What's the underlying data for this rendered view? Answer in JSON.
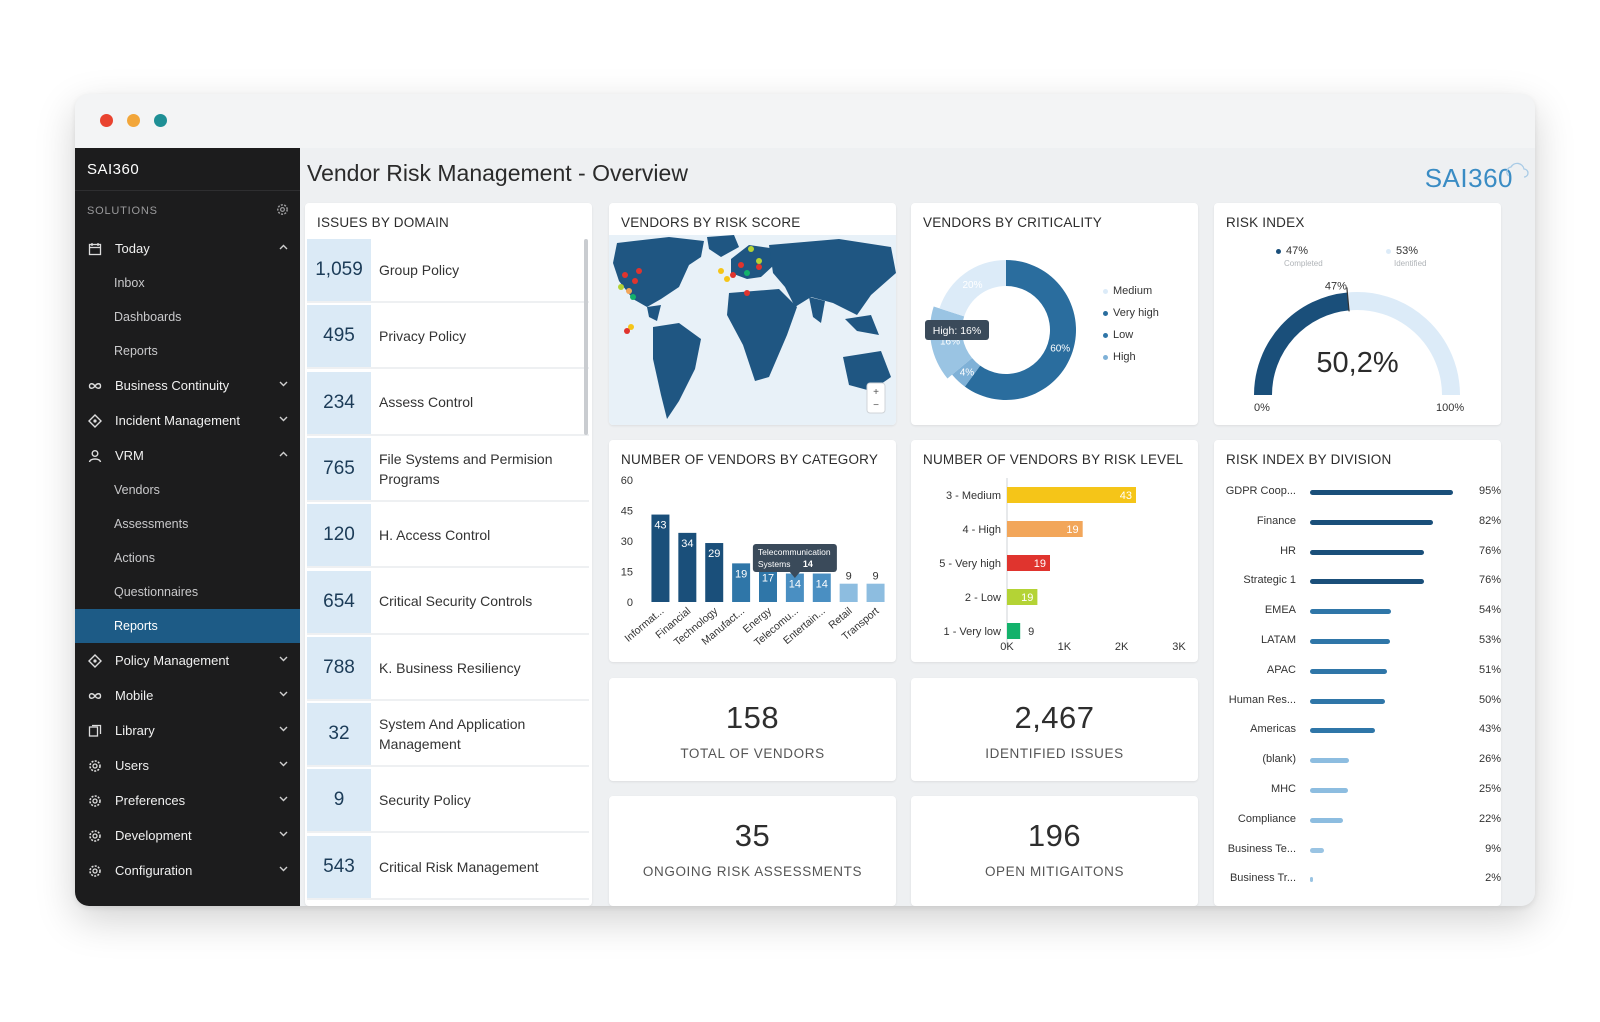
{
  "sidebar": {
    "brand": "SAI360",
    "solutions_label": "SOLUTIONS",
    "items": [
      {
        "type": "item",
        "label": "Today",
        "icon": "calendar-icon",
        "chev": "up"
      },
      {
        "type": "sub",
        "label": "Inbox"
      },
      {
        "type": "sub",
        "label": "Dashboards"
      },
      {
        "type": "sub",
        "label": "Reports"
      },
      {
        "type": "item",
        "label": "Business Continuity",
        "icon": "infinity-icon",
        "chev": "down"
      },
      {
        "type": "item",
        "label": "Incident Management",
        "icon": "diamond-icon",
        "chev": "down"
      },
      {
        "type": "item",
        "label": "VRM",
        "icon": "user-icon",
        "chev": "up"
      },
      {
        "type": "sub",
        "label": "Vendors"
      },
      {
        "type": "sub",
        "label": "Assessments"
      },
      {
        "type": "sub",
        "label": "Actions"
      },
      {
        "type": "sub",
        "label": "Questionnaires"
      },
      {
        "type": "sub",
        "label": "Reports",
        "active": true
      },
      {
        "type": "item",
        "label": "Policy Management",
        "icon": "diamond-icon",
        "chev": "down"
      },
      {
        "type": "item",
        "label": "Mobile",
        "icon": "infinity-icon",
        "chev": "down"
      },
      {
        "type": "item",
        "label": "Library",
        "icon": "books-icon",
        "chev": "down"
      },
      {
        "type": "item",
        "label": "Users",
        "icon": "gear-icon",
        "chev": "down"
      },
      {
        "type": "item",
        "label": "Preferences",
        "icon": "gear-icon",
        "chev": "down"
      },
      {
        "type": "item",
        "label": "Development",
        "icon": "gear-icon",
        "chev": "down"
      },
      {
        "type": "item",
        "label": "Configuration",
        "icon": "gear-icon",
        "chev": "down"
      }
    ]
  },
  "header": {
    "title": "Vendor Risk Management - Overview",
    "logo_text": "SAI360"
  },
  "issues_by_domain": {
    "title": "ISSUES BY DOMAIN",
    "rows": [
      {
        "value": "1,059",
        "label": "Group Policy"
      },
      {
        "value": "495",
        "label": "Privacy Policy"
      },
      {
        "value": "234",
        "label": "Assess Control"
      },
      {
        "value": "765",
        "label": "File Systems and Permision Programs"
      },
      {
        "value": "120",
        "label": "H. Access Control"
      },
      {
        "value": "654",
        "label": "Critical Security Controls"
      },
      {
        "value": "788",
        "label": "K. Business Resiliency"
      },
      {
        "value": "32",
        "label": "System And Application Management"
      },
      {
        "value": "9",
        "label": "Security Policy"
      },
      {
        "value": "543",
        "label": "Critical Risk Management"
      }
    ]
  },
  "vendors_by_risk_score": {
    "title": "VENDORS BY RISK SCORE",
    "zoom_in": "+",
    "zoom_out": "−"
  },
  "vendors_by_criticality": {
    "title": "VENDORS BY CRITICALITY",
    "tooltip": "High: 16%",
    "legend": [
      {
        "label": "Medium",
        "color": "#dcebf8"
      },
      {
        "label": "Very high",
        "color": "#2a6d9e"
      },
      {
        "label": "Low",
        "color": "#2f76a8"
      },
      {
        "label": "High",
        "color": "#7fb1d7"
      }
    ]
  },
  "risk_index": {
    "title": "RISK INDEX",
    "completed_pct": "47%",
    "completed_label": "Completed",
    "identified_pct": "53%",
    "identified_label": "Identified",
    "marker_label": "47%",
    "value": "50,2%",
    "axis_min": "0%",
    "axis_max": "100%",
    "completed_fraction": 0.47
  },
  "kpis": {
    "total_vendors": {
      "value": "158",
      "label": "TOTAL OF VENDORS"
    },
    "identified_issues": {
      "value": "2,467",
      "label": "IDENTIFIED ISSUES"
    },
    "ongoing_assessments": {
      "value": "35",
      "label": "ONGOING RISK ASSESSMENTS"
    },
    "open_mitigations": {
      "value": "196",
      "label": "OPEN MITIGAITONS"
    }
  },
  "risk_index_by_division": {
    "title": "RISK INDEX BY DIVISION",
    "rows": [
      {
        "label": "GDPR Coop...",
        "pct": "95%",
        "value": 95
      },
      {
        "label": "Finance",
        "pct": "82%",
        "value": 82
      },
      {
        "label": "HR",
        "pct": "76%",
        "value": 76
      },
      {
        "label": "Strategic 1",
        "pct": "76%",
        "value": 76
      },
      {
        "label": "EMEA",
        "pct": "54%",
        "value": 54
      },
      {
        "label": "LATAM",
        "pct": "53%",
        "value": 53
      },
      {
        "label": "APAC",
        "pct": "51%",
        "value": 51
      },
      {
        "label": "Human Res...",
        "pct": "50%",
        "value": 50
      },
      {
        "label": "Americas",
        "pct": "43%",
        "value": 43
      },
      {
        "label": "(blank)",
        "pct": "26%",
        "value": 26
      },
      {
        "label": "MHC",
        "pct": "25%",
        "value": 25
      },
      {
        "label": "Compliance",
        "pct": "22%",
        "value": 22
      },
      {
        "label": "Business Te...",
        "pct": "9%",
        "value": 9
      },
      {
        "label": "Business Tr...",
        "pct": "2%",
        "value": 2
      }
    ]
  },
  "chart_data": [
    {
      "id": "vendors_by_category",
      "type": "bar",
      "title": "NUMBER OF VENDORS BY CATEGORY",
      "categories": [
        "Informat...",
        "Financial",
        "Technology",
        "Manufact...",
        "Energy",
        "Telecomu...",
        "Entertain...",
        "Retail",
        "Transport"
      ],
      "values": [
        43,
        34,
        29,
        19,
        17,
        14,
        14,
        9,
        9
      ],
      "colors": [
        "#1a4f7a",
        "#1a4f7a",
        "#1a4f7a",
        "#2f76a8",
        "#2f76a8",
        "#4a8fc2",
        "#4a8fc2",
        "#8dbde0",
        "#8dbde0"
      ],
      "yticks": [
        0,
        15,
        30,
        45,
        60
      ],
      "ylim": [
        0,
        60
      ],
      "tooltip": {
        "line1": "Telecommunication",
        "line2": "Systems",
        "value": "14"
      }
    },
    {
      "id": "vendors_by_risk_level",
      "type": "bar",
      "orientation": "horizontal",
      "title": "NUMBER OF VENDORS BY RISK LEVEL",
      "categories": [
        "3 - Medium",
        "4 - High",
        "5 - Very high",
        "2 - Low",
        "1 - Very low"
      ],
      "values": [
        43,
        19,
        19,
        19,
        9
      ],
      "bar_lengths_k": [
        2.25,
        1.32,
        0.75,
        0.53,
        0.23
      ],
      "colors": [
        "#f5c518",
        "#f2a65a",
        "#e0342e",
        "#b4d335",
        "#13b26b"
      ],
      "xticks": [
        "0K",
        "1K",
        "2K",
        "3K"
      ],
      "xlim": [
        0,
        3
      ]
    },
    {
      "id": "vendors_by_criticality",
      "type": "pie",
      "title": "VENDORS BY CRITICALITY",
      "labels": [
        "Very high",
        "Low",
        "High",
        "Medium"
      ],
      "values": [
        60,
        4,
        16,
        20
      ],
      "colors": [
        "#2a6d9e",
        "#7fb1d7",
        "#9ac4e3",
        "#dcebf8"
      ]
    }
  ]
}
